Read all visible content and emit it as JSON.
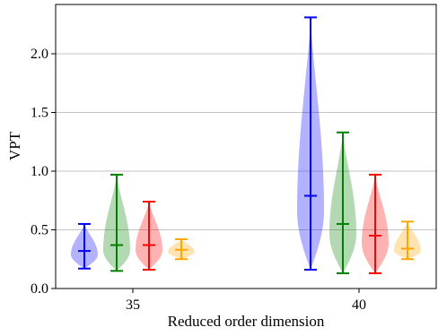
{
  "chart_data": {
    "type": "violin",
    "title": "",
    "xlabel": "Reduced order dimension",
    "ylabel": "VPT",
    "ylim": [
      0,
      2.42
    ],
    "yticks": [
      0.0,
      0.5,
      1.0,
      1.5,
      2.0
    ],
    "ytick_labels": [
      "0.0",
      "0.5",
      "1.0",
      "1.5",
      "2.0"
    ],
    "grid": "horizontal",
    "categories": [
      "35",
      "40"
    ],
    "series": [
      {
        "color": "#0000ff",
        "groups": [
          {
            "category": "35",
            "min": 0.17,
            "median": 0.32,
            "max": 0.55
          },
          {
            "category": "40",
            "min": 0.16,
            "median": 0.79,
            "max": 2.31
          }
        ]
      },
      {
        "color": "#008000",
        "groups": [
          {
            "category": "35",
            "min": 0.15,
            "median": 0.37,
            "max": 0.97
          },
          {
            "category": "40",
            "min": 0.13,
            "median": 0.55,
            "max": 1.33
          }
        ]
      },
      {
        "color": "#ff0000",
        "groups": [
          {
            "category": "35",
            "min": 0.16,
            "median": 0.37,
            "max": 0.74
          },
          {
            "category": "40",
            "min": 0.13,
            "median": 0.45,
            "max": 0.97
          }
        ]
      },
      {
        "color": "#ffa500",
        "groups": [
          {
            "category": "35",
            "min": 0.25,
            "median": 0.33,
            "max": 0.42
          },
          {
            "category": "40",
            "min": 0.25,
            "median": 0.34,
            "max": 0.57
          }
        ]
      }
    ]
  }
}
